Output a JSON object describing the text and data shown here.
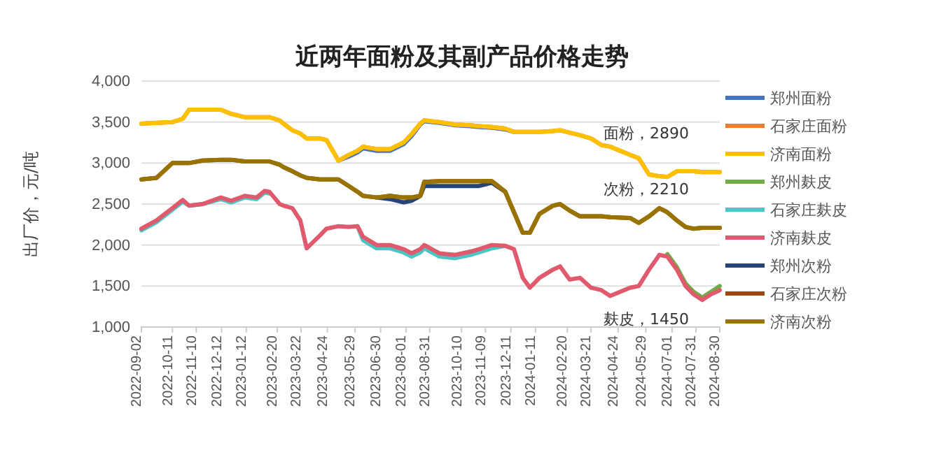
{
  "chart_data": {
    "type": "line",
    "title": "近两年面粉及其副产品价格走势",
    "ylabel": "出厂价，元/吨",
    "x": [
      "2022-09-02",
      "2022-09-21",
      "2022-10-11",
      "2022-10-24",
      "2022-11-01",
      "2022-11-18",
      "2022-12-11",
      "2022-12-24",
      "2023-01-10",
      "2023-01-25",
      "2023-02-04",
      "2023-02-10",
      "2023-02-23",
      "2023-02-28",
      "2023-03-11",
      "2023-03-21",
      "2023-03-29",
      "2023-04-15",
      "2023-04-23",
      "2023-05-08",
      "2023-05-21",
      "2023-06-01",
      "2023-06-08",
      "2023-06-25",
      "2023-07-12",
      "2023-07-29",
      "2023-08-08",
      "2023-08-19",
      "2023-08-24",
      "2023-09-12",
      "2023-10-02",
      "2023-10-21",
      "2023-11-01",
      "2023-11-17",
      "2023-12-04",
      "2023-12-15",
      "2023-12-26",
      "2024-01-04",
      "2024-01-16",
      "2024-02-02",
      "2024-02-11",
      "2024-02-23",
      "2024-03-07",
      "2024-03-21",
      "2024-04-03",
      "2024-04-14",
      "2024-05-09",
      "2024-05-20",
      "2024-06-02",
      "2024-06-15",
      "2024-06-25",
      "2024-07-07",
      "2024-07-18",
      "2024-07-28",
      "2024-08-08",
      "2024-08-19",
      "2024-08-30"
    ],
    "series": [
      {
        "name": "郑州面粉",
        "color": "#4472c4",
        "values": [
          null,
          null,
          null,
          null,
          null,
          null,
          null,
          null,
          null,
          null,
          null,
          null,
          null,
          null,
          null,
          null,
          null,
          null,
          null,
          3030,
          3080,
          3130,
          3180,
          3150,
          3150,
          3230,
          3330,
          3470,
          3510,
          3490,
          3460,
          3450,
          3440,
          3430,
          3410,
          3380,
          null,
          null,
          null,
          null,
          null,
          null,
          null,
          null,
          null,
          null,
          null,
          null,
          null,
          null,
          null,
          null,
          null,
          null,
          null,
          null,
          null
        ]
      },
      {
        "name": "石家庄面粉",
        "color": "#ed7d31",
        "values": [
          3480,
          3490,
          3500,
          3540,
          3650,
          3650,
          3650,
          3600,
          3560,
          3560,
          3560,
          3560,
          3520,
          3480,
          3400,
          3360,
          3300,
          3300,
          3280,
          3030,
          3100,
          3150,
          3200,
          3170,
          3170,
          3250,
          3350,
          3480,
          3520,
          3500,
          3470,
          3460,
          3450,
          3440,
          3420,
          3380,
          3380,
          3380,
          3380,
          3390,
          3400,
          3370,
          3340,
          3300,
          3220,
          3200,
          3100,
          3060,
          2860,
          2840,
          2830,
          2900,
          2900,
          2900,
          2890,
          2890,
          2890
        ]
      },
      {
        "name": "济南面粉",
        "color": "#ffc000",
        "values": [
          3480,
          3490,
          3500,
          3540,
          3650,
          3650,
          3650,
          3600,
          3560,
          3560,
          3560,
          3560,
          3520,
          3480,
          3400,
          3360,
          3300,
          3300,
          3280,
          3030,
          3100,
          3150,
          3200,
          3170,
          3170,
          3250,
          3350,
          3480,
          3520,
          3500,
          3470,
          3460,
          3450,
          3440,
          3420,
          3380,
          3380,
          3380,
          3380,
          3390,
          3400,
          3370,
          3340,
          3300,
          3220,
          3200,
          3100,
          3060,
          2860,
          2840,
          2830,
          2900,
          2900,
          2900,
          2890,
          2890,
          2890
        ]
      },
      {
        "name": "郑州麸皮",
        "color": "#70ad47",
        "values": [
          null,
          null,
          null,
          null,
          null,
          null,
          null,
          null,
          null,
          null,
          null,
          null,
          null,
          null,
          null,
          null,
          null,
          null,
          null,
          null,
          null,
          null,
          null,
          null,
          null,
          null,
          null,
          null,
          null,
          null,
          null,
          null,
          null,
          null,
          null,
          null,
          null,
          null,
          null,
          null,
          null,
          null,
          null,
          null,
          null,
          null,
          null,
          null,
          null,
          null,
          1890,
          1730,
          1530,
          1430,
          1360,
          1430,
          1500
        ]
      },
      {
        "name": "石家庄麸皮",
        "color": "#4bc5c5",
        "values": [
          2180,
          2280,
          2430,
          2530,
          2480,
          2500,
          2560,
          2520,
          2580,
          2560,
          2640,
          2630,
          null,
          null,
          null,
          null,
          null,
          null,
          null,
          null,
          null,
          2230,
          2060,
          1960,
          1960,
          1910,
          1860,
          1910,
          1960,
          1860,
          1840,
          1880,
          1910,
          1960,
          1990,
          null,
          null,
          null,
          null,
          null,
          null,
          null,
          null,
          null,
          null,
          null,
          null,
          null,
          null,
          null,
          null,
          null,
          null,
          null,
          null,
          null,
          null
        ]
      },
      {
        "name": "济南麸皮",
        "color": "#e05a6e",
        "values": [
          2200,
          2300,
          2450,
          2550,
          2480,
          2500,
          2580,
          2540,
          2600,
          2580,
          2660,
          2650,
          2500,
          2480,
          2450,
          2300,
          1960,
          2120,
          2200,
          2230,
          2220,
          2230,
          2100,
          2000,
          2000,
          1950,
          1900,
          1950,
          2000,
          1900,
          1880,
          1920,
          1950,
          2000,
          1990,
          1950,
          1600,
          1480,
          1600,
          1700,
          1740,
          1580,
          1600,
          1480,
          1450,
          1380,
          1480,
          1500,
          1700,
          1880,
          1860,
          1700,
          1500,
          1400,
          1330,
          1400,
          1450
        ]
      },
      {
        "name": "郑州次粉",
        "color": "#264478",
        "values": [
          null,
          null,
          null,
          null,
          null,
          null,
          null,
          null,
          null,
          null,
          null,
          null,
          null,
          null,
          null,
          null,
          null,
          null,
          null,
          null,
          null,
          null,
          null,
          2580,
          2560,
          2520,
          2540,
          2600,
          2720,
          2720,
          2720,
          2720,
          2720,
          2760,
          2650,
          null,
          null,
          null,
          null,
          null,
          null,
          null,
          null,
          null,
          null,
          null,
          null,
          null,
          null,
          null,
          null,
          null,
          null,
          null,
          null,
          null,
          null
        ]
      },
      {
        "name": "石家庄次粉",
        "color": "#9e480e",
        "values": [
          2800,
          2820,
          3000,
          3000,
          3000,
          3030,
          3040,
          3040,
          3020,
          3020,
          3020,
          3020,
          2980,
          2950,
          2900,
          2850,
          2820,
          2800,
          2800,
          2800,
          2720,
          2650,
          2600,
          2580,
          2600,
          2580,
          2580,
          2600,
          2770,
          2780,
          2780,
          2780,
          2780,
          2780,
          2650,
          2400,
          2150,
          2150,
          2380,
          2480,
          2500,
          2420,
          2350,
          2350,
          2350,
          2340,
          2330,
          2270,
          2350,
          2450,
          2400,
          2300,
          2220,
          2200,
          2210,
          2210,
          2210
        ]
      },
      {
        "name": "济南次粉",
        "color": "#997300",
        "values": [
          2800,
          2820,
          3000,
          3000,
          3000,
          3030,
          3040,
          3040,
          3020,
          3020,
          3020,
          3020,
          2980,
          2950,
          2900,
          2850,
          2820,
          2800,
          2800,
          2800,
          2720,
          2650,
          2600,
          2580,
          2600,
          2580,
          2580,
          2600,
          2770,
          2780,
          2780,
          2780,
          2780,
          2780,
          2650,
          2400,
          2150,
          2150,
          2380,
          2480,
          2500,
          2420,
          2350,
          2350,
          2350,
          2340,
          2330,
          2270,
          2350,
          2450,
          2400,
          2300,
          2220,
          2200,
          2210,
          2210,
          2210
        ]
      }
    ],
    "xlim": [
      "2022-09-02",
      "2024-08-30"
    ],
    "xticks": [
      "2022-09-02",
      "2022-10-11",
      "2022-11-10",
      "2022-12-12",
      "2023-01-12",
      "2023-02-20",
      "2023-03-22",
      "2023-04-24",
      "2023-05-29",
      "2023-06-30",
      "2023-08-01",
      "2023-08-31",
      "2023-10-10",
      "2023-11-09",
      "2023-12-11",
      "2024-01-11",
      "2024-02-20",
      "2024-03-21",
      "2024-04-24",
      "2024-05-29",
      "2024-07-01",
      "2024-07-31",
      "2024-08-30"
    ],
    "ylim": [
      1000,
      4000
    ],
    "yticks": [
      {
        "value": 1000,
        "label": "1,000"
      },
      {
        "value": 1500,
        "label": "1,500"
      },
      {
        "value": 2000,
        "label": "2,000"
      },
      {
        "value": 2500,
        "label": "2,500"
      },
      {
        "value": 3000,
        "label": "3,000"
      },
      {
        "value": 3500,
        "label": "3,500"
      },
      {
        "value": 4000,
        "label": "4,000"
      }
    ],
    "grid": "y",
    "legend": "right",
    "line_style": "solid",
    "marker": "none",
    "annotations": [
      {
        "text": "面粉，2890",
        "x": "2024-08-30",
        "y": 2890
      },
      {
        "text": "次粉，2210",
        "x": "2024-08-30",
        "y": 2210
      },
      {
        "text": "麸皮，1450",
        "x": "2024-08-30",
        "y": 1450
      }
    ]
  }
}
